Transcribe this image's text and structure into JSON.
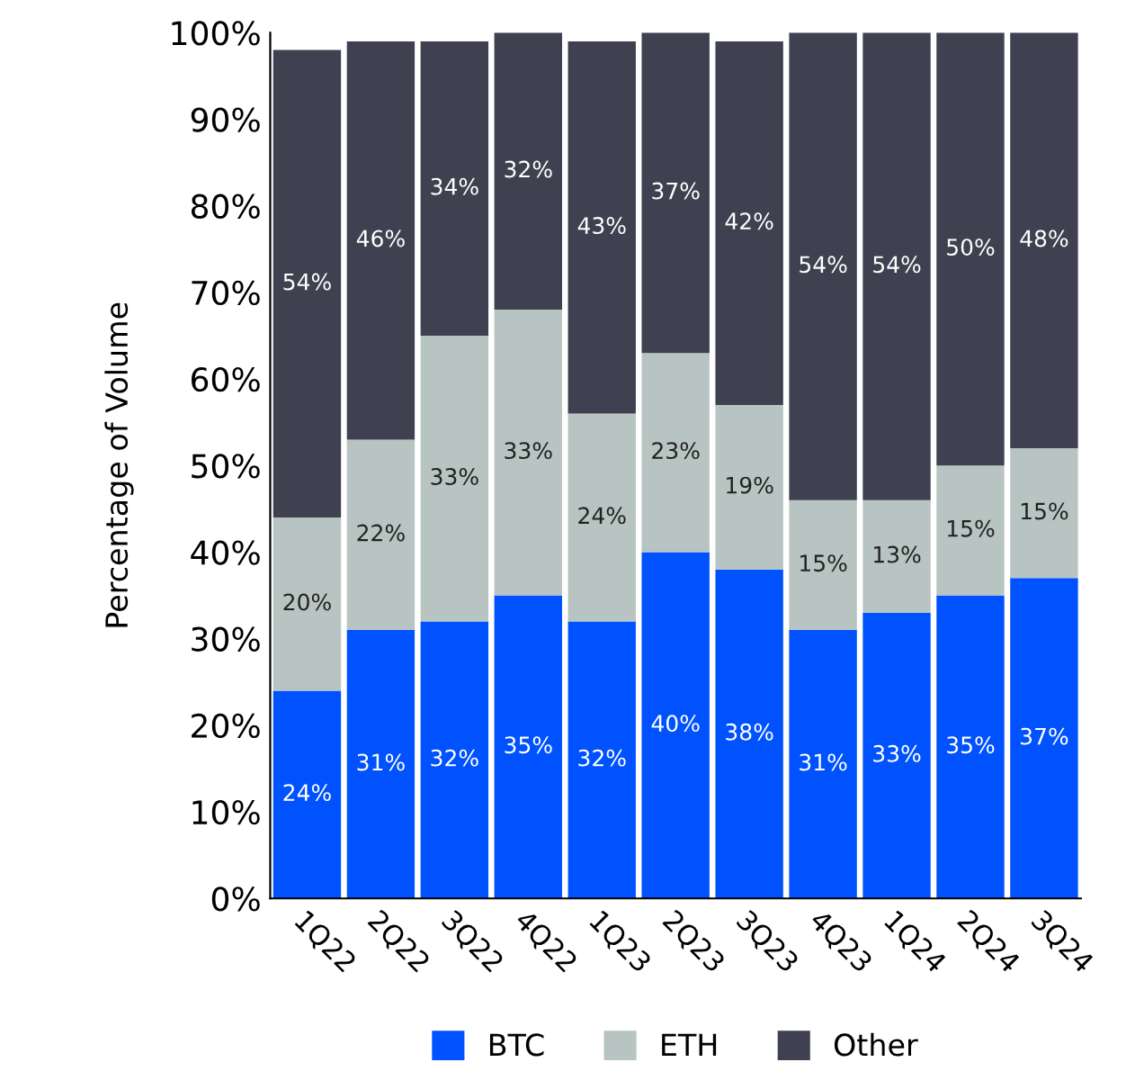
{
  "chart_data": {
    "type": "bar",
    "stacked": true,
    "ylabel": "Percentage of Volume",
    "categories": [
      "1Q22",
      "2Q22",
      "3Q22",
      "4Q22",
      "1Q23",
      "2Q23",
      "3Q23",
      "4Q23",
      "1Q24",
      "2Q24",
      "3Q24"
    ],
    "series": [
      {
        "name": "BTC",
        "color": "#0052ff",
        "values": [
          24,
          31,
          32,
          35,
          32,
          40,
          38,
          31,
          33,
          35,
          37
        ],
        "value_labels": [
          "24%",
          "31%",
          "32%",
          "35%",
          "32%",
          "40%",
          "38%",
          "31%",
          "33%",
          "35%",
          "37%"
        ]
      },
      {
        "name": "ETH",
        "color": "#b8c4c2",
        "values": [
          20,
          22,
          33,
          33,
          24,
          23,
          19,
          15,
          13,
          15,
          15
        ],
        "value_labels": [
          "20%",
          "22%",
          "33%",
          "33%",
          "24%",
          "23%",
          "19%",
          "15%",
          "13%",
          "15%",
          "15%"
        ]
      },
      {
        "name": "Other",
        "color": "#3f4150",
        "values": [
          54,
          46,
          34,
          32,
          43,
          37,
          42,
          54,
          54,
          50,
          48
        ],
        "value_labels": [
          "54%",
          "46%",
          "34%",
          "32%",
          "43%",
          "37%",
          "42%",
          "54%",
          "54%",
          "50%",
          "48%"
        ]
      }
    ],
    "ylim": [
      0,
      100
    ],
    "yticks": [
      {
        "value": 0,
        "label": "0%"
      },
      {
        "value": 10,
        "label": "10%"
      },
      {
        "value": 20,
        "label": "20%"
      },
      {
        "value": 30,
        "label": "30%"
      },
      {
        "value": 40,
        "label": "40%"
      },
      {
        "value": 50,
        "label": "50%"
      },
      {
        "value": 60,
        "label": "60%"
      },
      {
        "value": 70,
        "label": "70%"
      },
      {
        "value": 80,
        "label": "80%"
      },
      {
        "value": 90,
        "label": "90%"
      },
      {
        "value": 100,
        "label": "100%"
      }
    ],
    "grid": false,
    "legend": "bottom"
  }
}
